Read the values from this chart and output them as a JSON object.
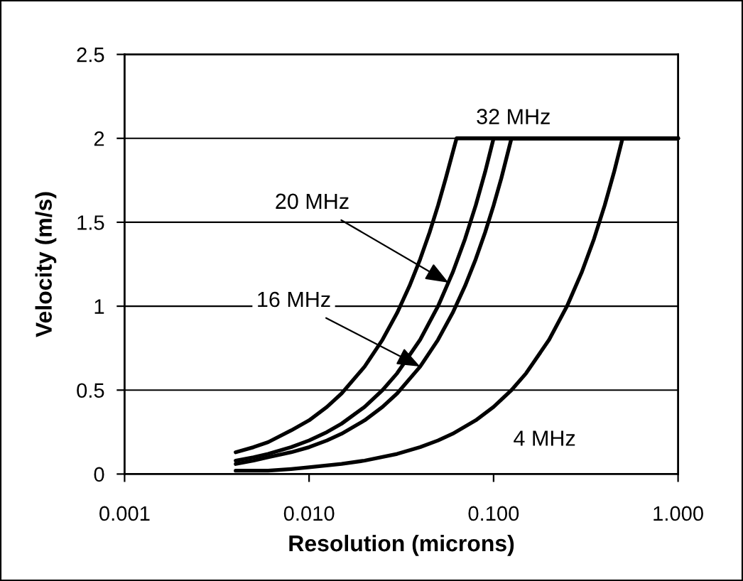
{
  "chart_data": {
    "type": "line",
    "xlabel": "Resolution (microns)",
    "ylabel": "Velocity (m/s)",
    "log": "x",
    "xlim": [
      0.001,
      1
    ],
    "xticks": [
      0.001,
      {
        "value": 0.01,
        "label": "0.010"
      },
      {
        "value": 0.1,
        "label": "0.100"
      },
      {
        "value": 1,
        "label": "1.000"
      }
    ],
    "ylim": [
      0,
      2.5
    ],
    "yticks": [
      0,
      0.5,
      1,
      1.5,
      2,
      2.5
    ],
    "grid": "y",
    "annotations": [
      {
        "text": "20 MHz",
        "x": 0.057,
        "y": 1.14
      },
      {
        "text": "16 MHz",
        "x": 0.04,
        "y": 0.64
      }
    ],
    "series": [
      {
        "name": "32 MHz",
        "color": "#000000",
        "x": [
          0.004,
          0.005,
          0.006,
          0.008,
          0.01,
          0.0125,
          0.015,
          0.02,
          0.025,
          0.03,
          0.035,
          0.04,
          0.045,
          0.05,
          0.055,
          0.063,
          1
        ],
        "values": [
          0.13,
          0.16,
          0.19,
          0.26,
          0.32,
          0.4,
          0.48,
          0.64,
          0.8,
          0.96,
          1.12,
          1.28,
          1.44,
          1.6,
          1.76,
          2,
          2
        ]
      },
      {
        "color": "#000000",
        "x": [
          0.004,
          0.005,
          0.006,
          0.008,
          0.01,
          0.0125,
          0.015,
          0.02,
          0.025,
          0.03,
          0.04,
          0.05,
          0.06,
          0.07,
          0.08,
          0.09,
          0.1,
          1
        ],
        "values": [
          0.08,
          0.1,
          0.12,
          0.16,
          0.2,
          0.25,
          0.3,
          0.4,
          0.5,
          0.6,
          0.8,
          1,
          1.2,
          1.4,
          1.6,
          1.8,
          2,
          2
        ]
      },
      {
        "color": "#000000",
        "x": [
          0.004,
          0.005,
          0.006,
          0.008,
          0.01,
          0.0125,
          0.015,
          0.02,
          0.025,
          0.03,
          0.04,
          0.05,
          0.06,
          0.07,
          0.08,
          0.09,
          0.1,
          0.11,
          0.125,
          1
        ],
        "values": [
          0.06,
          0.08,
          0.1,
          0.13,
          0.16,
          0.2,
          0.24,
          0.32,
          0.4,
          0.48,
          0.64,
          0.8,
          0.96,
          1.12,
          1.28,
          1.44,
          1.6,
          1.76,
          2,
          2
        ]
      },
      {
        "name": "4 MHz",
        "color": "#000000",
        "x": [
          0.004,
          0.006,
          0.008,
          0.01,
          0.015,
          0.02,
          0.03,
          0.04,
          0.05,
          0.06,
          0.08,
          0.1,
          0.125,
          0.15,
          0.2,
          0.25,
          0.3,
          0.35,
          0.4,
          0.45,
          0.5,
          1
        ],
        "values": [
          0.02,
          0.02,
          0.03,
          0.04,
          0.06,
          0.08,
          0.12,
          0.16,
          0.2,
          0.24,
          0.32,
          0.4,
          0.5,
          0.6,
          0.8,
          1,
          1.2,
          1.4,
          1.6,
          1.8,
          2,
          2
        ]
      }
    ]
  }
}
